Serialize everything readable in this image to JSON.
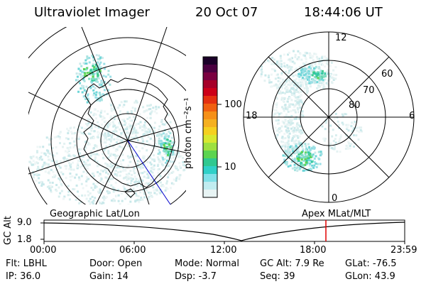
{
  "header": {
    "title": "Ultraviolet Imager",
    "date": "20 Oct 07",
    "time": "18:44:06 UT"
  },
  "colorbar": {
    "unit_label": "photon cm⁻²s⁻¹",
    "tick_labels": [
      "100",
      "10"
    ],
    "colors": [
      "#1a0028",
      "#4a0040",
      "#7a0040",
      "#a60028",
      "#cc0018",
      "#e43010",
      "#f06010",
      "#f59018",
      "#f5b020",
      "#f5d020",
      "#d8e830",
      "#9ee040",
      "#5cd450",
      "#30c890",
      "#30d0c8",
      "#80e0e8",
      "#c0ecf0",
      "#e8f4f4"
    ]
  },
  "left_map": {
    "label": "Geographic Lat/Lon"
  },
  "right_map": {
    "label": "Apex MLat/MLT",
    "mlt_labels": {
      "top": "12",
      "left": "18",
      "right": "6",
      "bottom": "0"
    },
    "lat_labels": [
      "60",
      "70",
      "80"
    ]
  },
  "timeline": {
    "axis_label": "GC Alt",
    "y_ticks": [
      "9.0",
      "1.8"
    ],
    "x_ticks": [
      "00:00",
      "06:00",
      "12:00",
      "18:00",
      "23:59"
    ],
    "current_marker_color": "#e00000"
  },
  "info": {
    "flt": "Flt: LBHL",
    "ip": "IP: 36.0",
    "door": "Door: Open",
    "gain": "Gain: 14",
    "mode": "Mode: Normal",
    "dsp": "Dsp:   -3.7",
    "gc_alt": "GC Alt: 7.9 Re",
    "seq": "Seq: 39",
    "glat": "GLat: -76.5",
    "glon": "GLon:  43.9"
  }
}
